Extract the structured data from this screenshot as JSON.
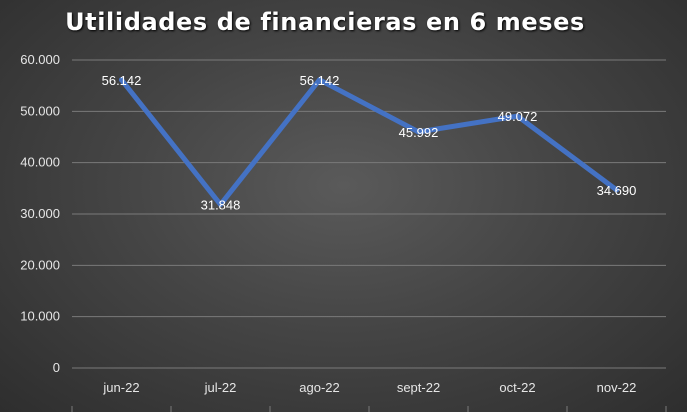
{
  "chart_data": {
    "type": "line",
    "title": "Utilidades de financieras en 6 meses",
    "categories": [
      "jun-22",
      "jul-22",
      "ago-22",
      "sept-22",
      "oct-22",
      "nov-22"
    ],
    "series": [
      {
        "values": [
          56142,
          31848,
          56142,
          45992,
          49072,
          34690
        ]
      }
    ],
    "data_labels": [
      "56.142",
      "31.848",
      "56.142",
      "45.992",
      "49.072",
      "34.690"
    ],
    "y_ticks": [
      0,
      10000,
      20000,
      30000,
      40000,
      50000,
      60000
    ],
    "y_tick_labels": [
      "0",
      "10.000",
      "20.000",
      "30.000",
      "40.000",
      "50.000",
      "60.000"
    ],
    "ylim": [
      0,
      60000
    ],
    "xlabel": "",
    "ylabel": "",
    "grid": true,
    "legend": "none",
    "colors": {
      "line": "#4472c4",
      "grid": "#7a7a7a",
      "text": "#ffffff"
    }
  }
}
